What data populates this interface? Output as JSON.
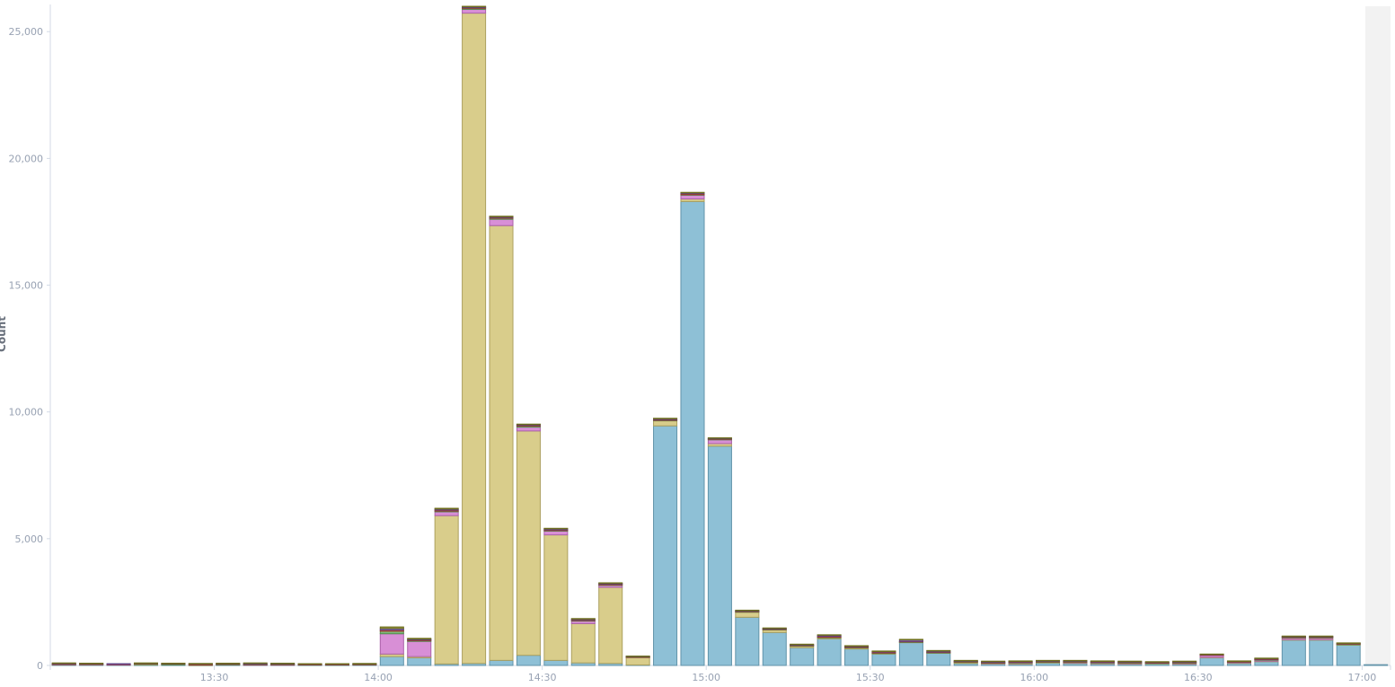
{
  "chart_data": {
    "type": "bar",
    "stacked": true,
    "ylabel": "Count",
    "ylim": [
      0,
      26000
    ],
    "y_ticks": [
      0,
      5000,
      10000,
      15000,
      20000,
      25000
    ],
    "y_tick_labels": [
      "0",
      "5,000",
      "10,000",
      "15,000",
      "20,000",
      "25,000"
    ],
    "x_tick_labels": [
      "13:30",
      "14:00",
      "14:30",
      "15:00",
      "15:30",
      "16:00",
      "16:30",
      "17:00"
    ],
    "x_tick_times": [
      "13:30",
      "14:00",
      "14:30",
      "15:00",
      "15:30",
      "16:00",
      "16:30",
      "17:00"
    ],
    "bucket_minutes": 5,
    "x": [
      "13:00",
      "13:05",
      "13:10",
      "13:15",
      "13:20",
      "13:25",
      "13:30",
      "13:35",
      "13:40",
      "13:45",
      "13:50",
      "13:55",
      "14:00",
      "14:05",
      "14:10",
      "14:15",
      "14:20",
      "14:25",
      "14:30",
      "14:35",
      "14:40",
      "14:45",
      "14:50",
      "14:55",
      "15:00",
      "15:05",
      "15:10",
      "15:15",
      "15:20",
      "15:25",
      "15:30",
      "15:35",
      "15:40",
      "15:45",
      "15:50",
      "15:55",
      "16:00",
      "16:05",
      "16:10",
      "16:15",
      "16:20",
      "16:25",
      "16:30",
      "16:35",
      "16:40",
      "16:45",
      "16:50",
      "16:55",
      "17:00"
    ],
    "grid": false,
    "partial_bucket_shaded": true,
    "colors": {
      "blue": "#8ec0d6",
      "yellow": "#d9cd8b",
      "pink": "#d88fd6",
      "green": "#7fba7a",
      "red": "#c9605a",
      "purple": "#8a6fb0",
      "olive": "#9a9a4a"
    },
    "series": [
      {
        "color_key": "blue",
        "values": [
          30,
          30,
          20,
          20,
          20,
          10,
          20,
          20,
          20,
          20,
          20,
          30,
          350,
          300,
          60,
          80,
          200,
          400,
          200,
          100,
          80,
          20,
          9450,
          18300,
          8650,
          1900,
          1300,
          700,
          1050,
          650,
          450,
          900,
          480,
          80,
          60,
          50,
          100,
          80,
          60,
          50,
          60,
          50,
          300,
          80,
          150,
          1000,
          1000,
          800,
          30
        ]
      },
      {
        "color_key": "yellow",
        "values": [
          0,
          0,
          0,
          20,
          0,
          10,
          0,
          0,
          0,
          0,
          0,
          0,
          100,
          50,
          5850,
          25650,
          17150,
          8850,
          4950,
          1550,
          3000,
          300,
          200,
          100,
          100,
          200,
          100,
          60,
          40,
          50,
          30,
          20,
          20,
          40,
          20,
          30,
          20,
          20,
          20,
          20,
          20,
          20,
          20,
          20,
          20,
          20,
          20,
          30,
          0
        ]
      },
      {
        "color_key": "pink",
        "values": [
          10,
          10,
          20,
          0,
          0,
          0,
          0,
          10,
          10,
          0,
          0,
          0,
          800,
          600,
          150,
          150,
          250,
          150,
          150,
          100,
          80,
          0,
          0,
          150,
          150,
          0,
          0,
          0,
          0,
          0,
          0,
          0,
          0,
          0,
          20,
          20,
          0,
          20,
          20,
          20,
          0,
          20,
          80,
          20,
          40,
          60,
          60,
          0,
          0
        ]
      },
      {
        "color_key": "green",
        "values": [
          10,
          10,
          0,
          30,
          40,
          0,
          30,
          10,
          10,
          10,
          10,
          10,
          100,
          30,
          30,
          40,
          40,
          40,
          20,
          20,
          20,
          10,
          20,
          20,
          20,
          20,
          20,
          20,
          20,
          10,
          10,
          10,
          10,
          20,
          10,
          20,
          20,
          20,
          20,
          20,
          20,
          30,
          0,
          20,
          20,
          20,
          20,
          10,
          0
        ]
      },
      {
        "color_key": "red",
        "values": [
          10,
          10,
          10,
          10,
          10,
          40,
          10,
          10,
          10,
          10,
          10,
          10,
          50,
          30,
          40,
          30,
          30,
          30,
          30,
          30,
          30,
          10,
          30,
          40,
          20,
          20,
          20,
          20,
          40,
          30,
          40,
          20,
          20,
          20,
          10,
          20,
          20,
          20,
          20,
          20,
          10,
          10,
          20,
          10,
          20,
          20,
          20,
          20,
          0
        ]
      },
      {
        "color_key": "purple",
        "values": [
          30,
          20,
          20,
          10,
          10,
          10,
          20,
          40,
          30,
          20,
          20,
          20,
          60,
          30,
          40,
          30,
          30,
          30,
          40,
          30,
          30,
          20,
          30,
          30,
          20,
          20,
          20,
          20,
          40,
          20,
          20,
          60,
          40,
          20,
          30,
          20,
          20,
          20,
          20,
          20,
          20,
          20,
          20,
          20,
          30,
          30,
          30,
          20,
          0
        ]
      },
      {
        "color_key": "olive",
        "values": [
          10,
          10,
          0,
          10,
          10,
          10,
          10,
          10,
          10,
          10,
          10,
          10,
          60,
          30,
          30,
          20,
          20,
          20,
          20,
          20,
          20,
          10,
          20,
          20,
          20,
          20,
          20,
          20,
          20,
          20,
          20,
          20,
          20,
          20,
          20,
          20,
          20,
          20,
          20,
          20,
          20,
          20,
          10,
          10,
          10,
          10,
          10,
          10,
          0
        ]
      }
    ]
  }
}
